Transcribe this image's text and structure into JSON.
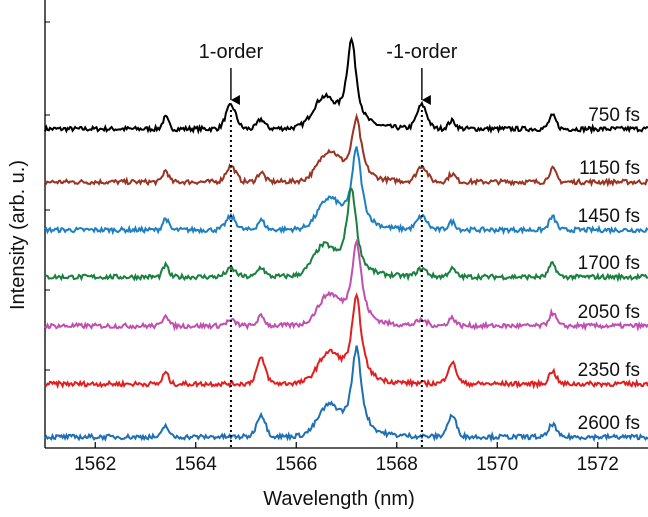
{
  "chart_data": {
    "type": "line",
    "title": "",
    "xlabel": "Wavelength (nm)",
    "ylabel": "Intensity (arb. u.)",
    "xlim": [
      1561,
      1573
    ],
    "x_ticks": [
      1562,
      1564,
      1566,
      1568,
      1570,
      1572
    ],
    "x_tick_labels": [
      "1562",
      "1564",
      "1566",
      "1568",
      "1570",
      "1572"
    ],
    "yaxis_tick_labels_shown": false,
    "grid": false,
    "legend": "none",
    "series": [
      {
        "name": "750 fs",
        "color": "#000000",
        "offset": 6,
        "main_peak": {
          "x": 1567.1,
          "height": 1.7
        },
        "side_peaks": [
          {
            "x": 1564.7,
            "height": 0.45
          },
          {
            "x": 1568.5,
            "height": 0.45
          }
        ]
      },
      {
        "name": "1150 fs",
        "color": "#993322",
        "offset": 5,
        "main_peak": {
          "x": 1567.2,
          "height": 1.2
        },
        "side_peaks": [
          {
            "x": 1564.7,
            "height": 0.3
          },
          {
            "x": 1568.5,
            "height": 0.3
          }
        ]
      },
      {
        "name": "1450 fs",
        "color": "#1f7fc1",
        "offset": 4,
        "main_peak": {
          "x": 1567.2,
          "height": 1.55
        },
        "side_peaks": [
          {
            "x": 1564.7,
            "height": 0.25
          },
          {
            "x": 1568.5,
            "height": 0.25
          }
        ]
      },
      {
        "name": "1700 fs",
        "color": "#1a8040",
        "offset": 3,
        "main_peak": {
          "x": 1567.1,
          "height": 1.7
        },
        "side_peaks": [
          {
            "x": 1564.7,
            "height": 0.15
          },
          {
            "x": 1568.5,
            "height": 0.15
          }
        ]
      },
      {
        "name": "2050 fs",
        "color": "#c050b0",
        "offset": 2,
        "main_peak": {
          "x": 1567.2,
          "height": 1.6
        },
        "side_peaks": [
          {
            "x": 1564.7,
            "height": 0.1
          },
          {
            "x": 1568.5,
            "height": 0.1
          }
        ]
      },
      {
        "name": "2350 fs",
        "color": "#e02020",
        "offset": 1,
        "main_peak": {
          "x": 1567.2,
          "height": 1.65
        },
        "side_peaks": [
          {
            "x": 1565.3,
            "height": 0.3
          },
          {
            "x": 1569.1,
            "height": 0.25
          }
        ]
      },
      {
        "name": "2600 fs",
        "color": "#1f6fb5",
        "offset": 0,
        "main_peak": {
          "x": 1567.2,
          "height": 1.7
        },
        "side_peaks": [
          {
            "x": 1565.3,
            "height": 0.25
          },
          {
            "x": 1569.1,
            "height": 0.25
          }
        ]
      }
    ],
    "annotations": [
      {
        "text": "1-order",
        "x": 1564.7
      },
      {
        "text": "-1-order",
        "x": 1568.5
      }
    ]
  }
}
